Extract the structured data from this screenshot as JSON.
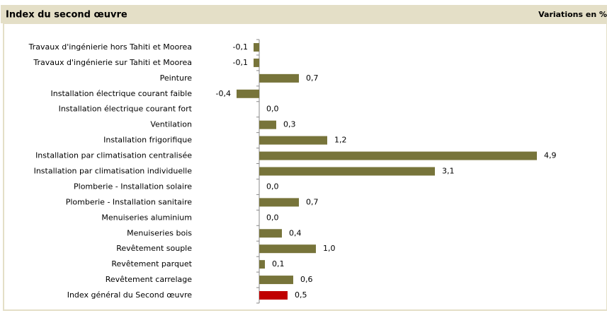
{
  "chart_data": {
    "type": "barh",
    "title": "Index du second œuvre",
    "subtitle": "Variations en %",
    "categories": [
      "Travaux d'ingénierie hors Tahiti et Moorea",
      "Travaux d'ingénierie sur Tahiti et Moorea",
      "Peinture",
      "Installation électrique courant faible",
      "Installation électrique courant fort",
      "Ventilation",
      "Installation frigorifique",
      "Installation par climatisation centralisée",
      "Installation par climatisation individuelle",
      "Plomberie - Installation solaire",
      "Plomberie - Installation sanitaire",
      "Menuiseries aluminium",
      "Menuiseries bois",
      "Revêtement souple",
      "Revêtement parquet",
      "Revêtement carrelage",
      "Index général du Second œuvre"
    ],
    "values": [
      -0.1,
      -0.1,
      0.7,
      -0.4,
      0.0,
      0.3,
      1.2,
      4.9,
      3.1,
      0.0,
      0.7,
      0.0,
      0.4,
      1.0,
      0.1,
      0.6,
      0.5
    ],
    "value_labels": [
      "-0,1",
      "-0,1",
      "0,7",
      "-0,4",
      "0,0",
      "0,3",
      "1,2",
      "4,9",
      "3,1",
      "0,0",
      "0,7",
      "0,0",
      "0,4",
      "1,0",
      "0,1",
      "0,6",
      "0,5"
    ],
    "colors": [
      "#77743a",
      "#77743a",
      "#77743a",
      "#77743a",
      "#77743a",
      "#77743a",
      "#77743a",
      "#77743a",
      "#77743a",
      "#77743a",
      "#77743a",
      "#77743a",
      "#77743a",
      "#77743a",
      "#77743a",
      "#77743a",
      "#c00000"
    ],
    "xlim": [
      -0.5,
      5.5
    ]
  }
}
